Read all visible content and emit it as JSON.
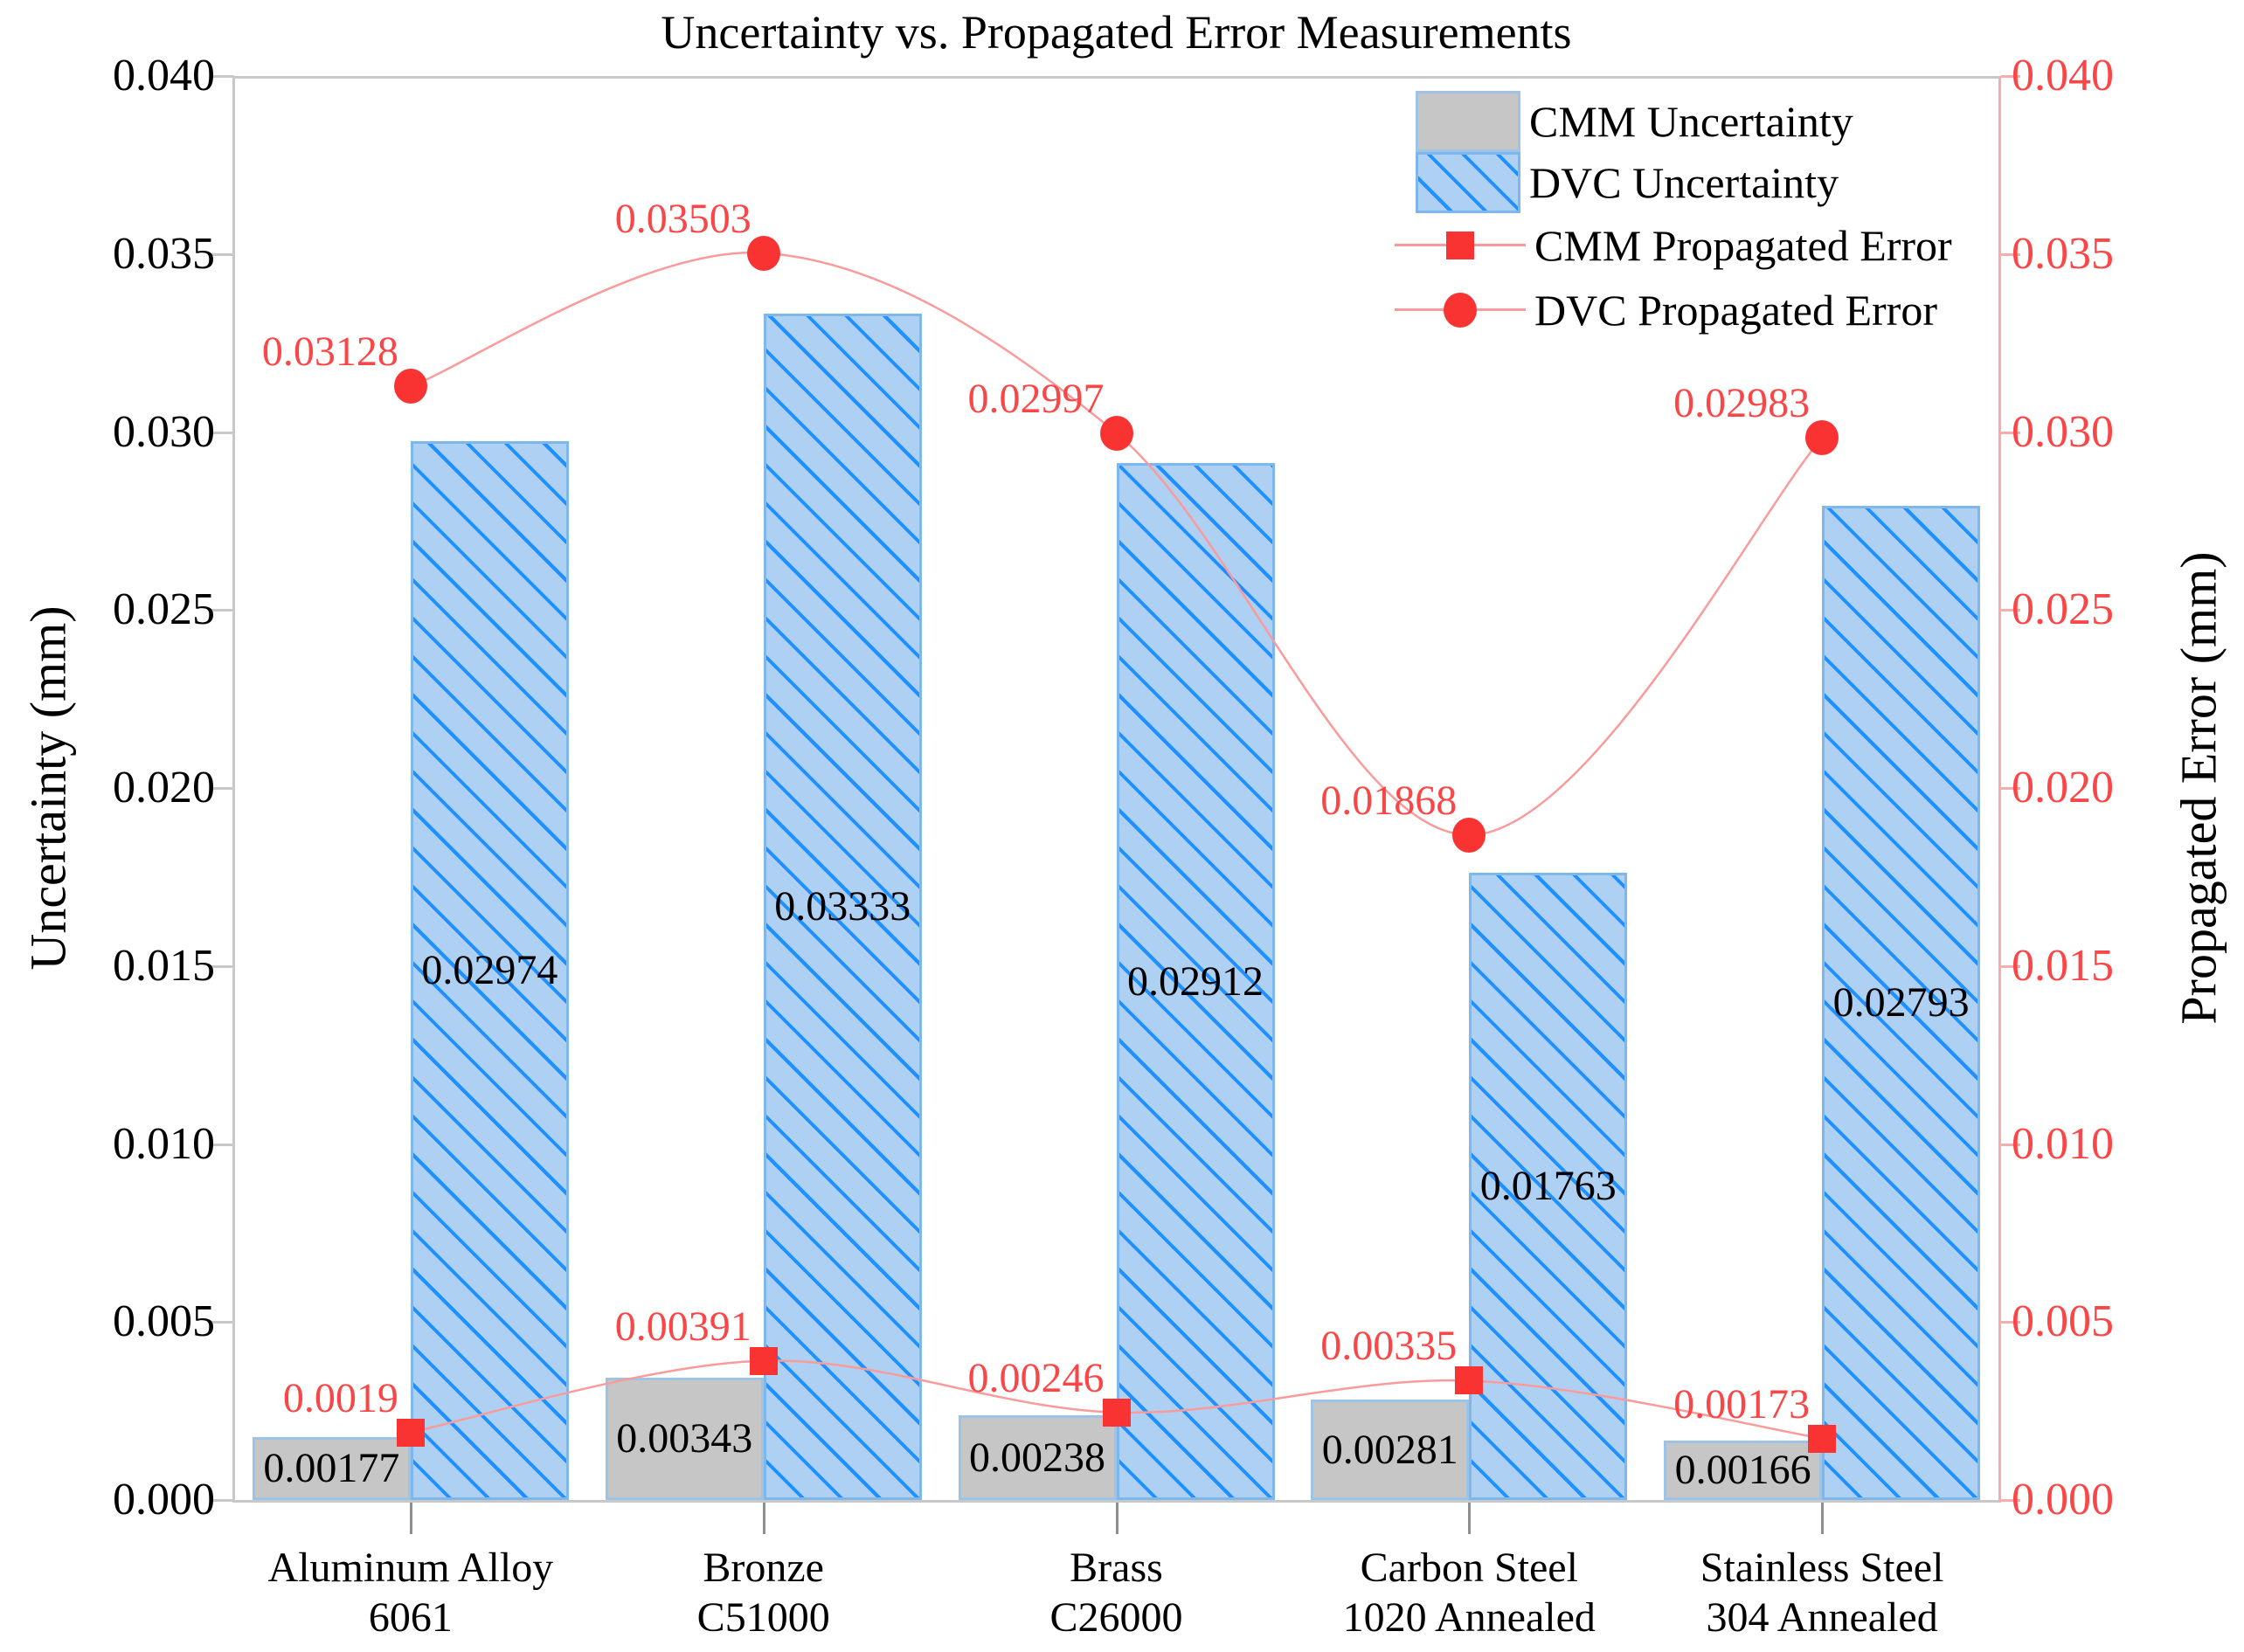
{
  "chart_data": {
    "type": "bar+line (dual y-axis)",
    "title": "Uncertainty vs. Propagated Error Measurements",
    "categories": [
      "Aluminum Alloy\n6061",
      "Bronze\nC51000",
      "Brass\nC26000",
      "Carbon Steel\n1020 Annealed",
      "Stainless Steel\n304 Annealed"
    ],
    "left_axis": {
      "label": "Uncertainty (mm)",
      "min": 0.0,
      "max": 0.04,
      "ticks": [
        "0.000",
        "0.005",
        "0.010",
        "0.015",
        "0.020",
        "0.025",
        "0.030",
        "0.035",
        "0.040"
      ]
    },
    "right_axis": {
      "label": "Propagated Error (mm)",
      "min": 0.0,
      "max": 0.04,
      "ticks": [
        "0.000",
        "0.005",
        "0.010",
        "0.015",
        "0.020",
        "0.025",
        "0.030",
        "0.035",
        "0.040"
      ]
    },
    "bar_series": [
      {
        "name": "CMM Uncertainty",
        "style": "gray",
        "axis": "left",
        "values": [
          "0.00177",
          "0.00343",
          "0.00238",
          "0.00281",
          "0.00166"
        ]
      },
      {
        "name": "DVC Uncertainty",
        "style": "hatched",
        "axis": "left",
        "values": [
          "0.02974",
          "0.03333",
          "0.02912",
          "0.01763",
          "0.02793"
        ]
      }
    ],
    "line_series": [
      {
        "name": "CMM Propagated Error",
        "marker": "square",
        "axis": "right",
        "values": [
          "0.0019",
          "0.00391",
          "0.00246",
          "0.00335",
          "0.00173"
        ]
      },
      {
        "name": "DVC Propagated Error",
        "marker": "circle",
        "axis": "right",
        "values": [
          "0.03128",
          "0.03503",
          "0.02997",
          "0.01868",
          "0.02983"
        ]
      }
    ],
    "legend": {
      "position": "top-right",
      "entries": [
        "CMM Uncertainty",
        "DVC Uncertainty",
        "CMM Propagated Error",
        "DVC Propagated Error"
      ]
    },
    "grid": false,
    "colors": {
      "bar_gray_fill": "#c6c6c6",
      "bar_gray_edge": "#9dc3e6",
      "bar_blue_fill": "#aed0f2",
      "bar_blue_edge": "#7db7ec",
      "hatch_blue": "#1e90ff",
      "marker_red": "#f93232",
      "line_red": "#fa9b9b",
      "label_red": "#fa4646",
      "spine_gray": "#c8c8c8",
      "bottom_tick_gray": "#8f8f8f",
      "right_spine_red": "#f7adad",
      "text_black": "#000000"
    }
  }
}
